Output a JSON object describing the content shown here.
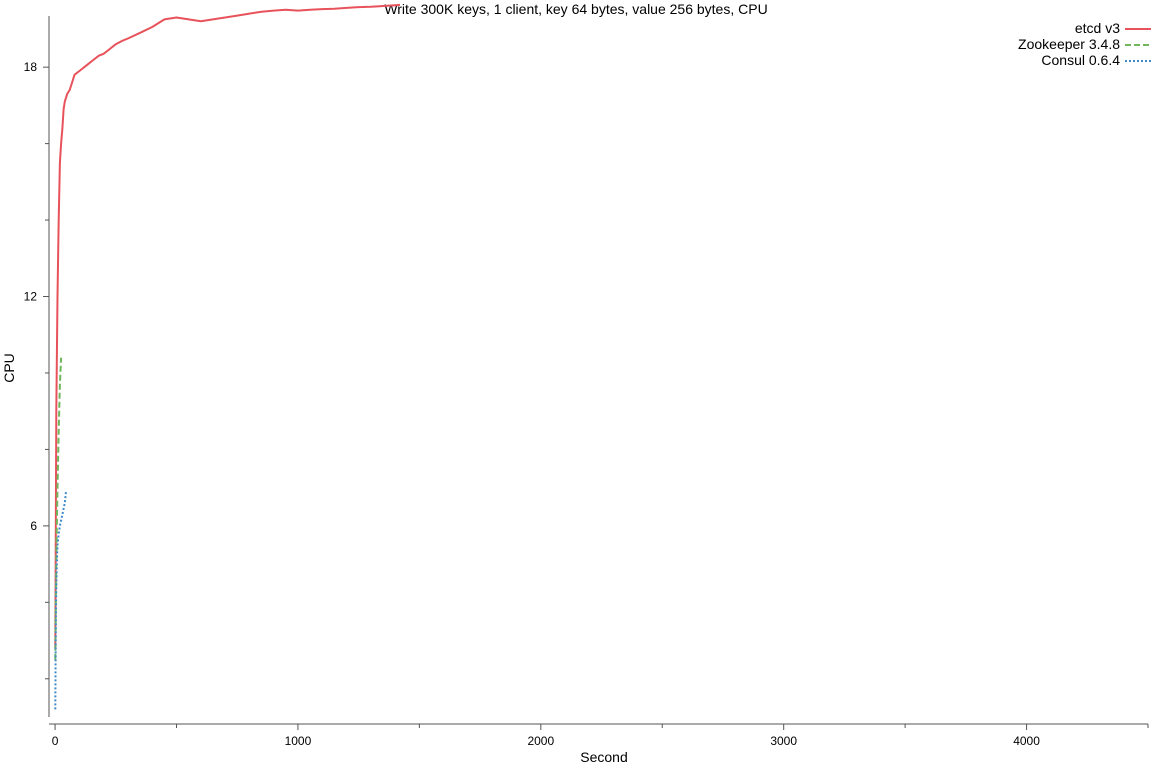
{
  "chart_data": {
    "type": "line",
    "title": "Write 300K keys, 1 client, key 64 bytes, value 256 bytes, CPU",
    "xlabel": "Second",
    "ylabel": "CPU",
    "xlim": [
      -25,
      4500
    ],
    "ylim": [
      1.0,
      19.6
    ],
    "x_ticks": [
      0,
      1000,
      2000,
      3000,
      4000
    ],
    "x_tick_labels": [
      "0",
      "1000",
      "2000",
      "3000",
      "4000"
    ],
    "x_minor_ticks": [
      500,
      1500,
      2500,
      3500,
      4500
    ],
    "y_ticks": [
      6,
      12,
      18
    ],
    "y_tick_labels": [
      "6",
      "12",
      "18"
    ],
    "y_minor_ticks": [
      2,
      4,
      8,
      10,
      14,
      16
    ],
    "grid": false,
    "legend_position": "top-right",
    "series": [
      {
        "name": "etcd v3",
        "color": "#e8525a",
        "dash": "solid",
        "x": [
          1,
          5,
          10,
          15,
          20,
          25,
          30,
          35,
          40,
          50,
          60,
          70,
          80,
          90,
          100,
          120,
          140,
          160,
          180,
          200,
          220,
          250,
          280,
          300,
          350,
          400,
          450,
          500,
          550,
          600,
          650,
          700,
          750,
          800,
          850,
          900,
          950,
          1000,
          1050,
          1100,
          1150,
          1200,
          1250,
          1300,
          1350,
          1400,
          1420
        ],
        "y": [
          2.8,
          9.0,
          12.0,
          14.0,
          15.5,
          16.0,
          16.4,
          16.9,
          17.1,
          17.3,
          17.4,
          17.6,
          17.8,
          17.85,
          17.9,
          18.0,
          18.1,
          18.2,
          18.3,
          18.35,
          18.45,
          18.6,
          18.7,
          18.75,
          18.9,
          19.05,
          19.25,
          19.3,
          19.25,
          19.2,
          19.25,
          19.3,
          19.35,
          19.4,
          19.45,
          19.48,
          19.5,
          19.48,
          19.5,
          19.52,
          19.53,
          19.55,
          19.57,
          19.58,
          19.6,
          19.62,
          19.63
        ]
      },
      {
        "name": "Zookeeper 3.4.8",
        "color": "#6fb65d",
        "dash": "dashed",
        "x": [
          1,
          3,
          6,
          10,
          15,
          20,
          25
        ],
        "y": [
          2.5,
          4.0,
          5.5,
          7.0,
          8.5,
          9.7,
          10.4
        ]
      },
      {
        "name": "Consul 0.6.4",
        "color": "#3e8ac9",
        "dash": "dotted",
        "x": [
          1,
          2,
          4,
          7,
          10,
          15,
          20,
          30,
          40,
          45
        ],
        "y": [
          1.2,
          2.5,
          4.0,
          5.0,
          5.5,
          5.8,
          6.0,
          6.3,
          6.6,
          6.9
        ]
      }
    ]
  }
}
